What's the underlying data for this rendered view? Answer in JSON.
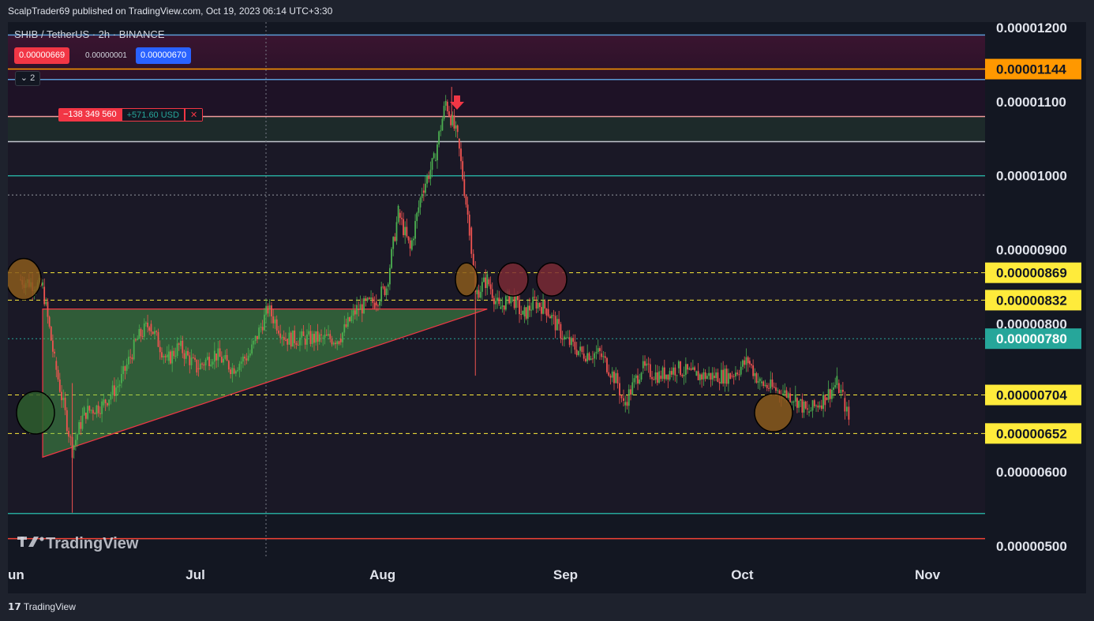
{
  "header": {
    "publish_text": "ScalpTrader69 published on TradingView.com, Oct 19, 2023 06:14 UTC+3:30"
  },
  "legend": {
    "symbol": "SHIB / TetherUS · 2h · BINANCE",
    "sell_price": "0.00000669",
    "spread": "0.00000001",
    "buy_price": "0.00000670",
    "indicator_count": "2"
  },
  "position_tool": {
    "qty": "−138 349 560",
    "pnl": "+571.60 USD",
    "close": "✕"
  },
  "watermark": "TradingView",
  "footer": {
    "brand": "TradingView"
  },
  "colors": {
    "background": "#131722",
    "up": "#4caf50",
    "down": "#ef5350",
    "triangle_fill": "#4caf50",
    "yellow_label": "#ffeb3b",
    "orange_label": "#ff9800",
    "teal_label": "#26a69a"
  },
  "chart_data": {
    "type": "candlestick",
    "title": "",
    "x_ticks": [
      "un",
      "Jul",
      "Aug",
      "Sep",
      "Oct",
      "Nov"
    ],
    "y_ticks": [
      {
        "value": 1.2e-05,
        "label": "0.00001200"
      },
      {
        "value": 1.1e-05,
        "label": "0.00001100"
      },
      {
        "value": 1e-05,
        "label": "0.00001000"
      },
      {
        "value": 9e-06,
        "label": "0.00000900"
      },
      {
        "value": 8e-06,
        "label": "0.00000800"
      },
      {
        "value": 6e-06,
        "label": "0.00000600"
      },
      {
        "value": 5e-06,
        "label": "0.00000500"
      }
    ],
    "ylim": [
      4.8e-06,
      1.225e-05
    ],
    "price_labels": [
      {
        "value": 1.144e-05,
        "label": "0.00001144",
        "style": "orange"
      },
      {
        "value": 8.69e-06,
        "label": "0.00000869",
        "style": "yellow"
      },
      {
        "value": 8.32e-06,
        "label": "0.00000832",
        "style": "yellow"
      },
      {
        "value": 7.8e-06,
        "label": "0.00000780",
        "style": "teal"
      },
      {
        "value": 7.04e-06,
        "label": "0.00000704",
        "style": "yellow"
      },
      {
        "value": 6.52e-06,
        "label": "0.00000652",
        "style": "yellow"
      }
    ],
    "horizontal_lines": [
      {
        "value": 1.19e-05,
        "color": "#5b9bd5"
      },
      {
        "value": 1.13e-05,
        "color": "#5b9bd5"
      },
      {
        "value": 1.144e-05,
        "color": "#ff9800"
      },
      {
        "value": 1.08e-05,
        "color": "#ef9a9a"
      },
      {
        "value": 1.046e-05,
        "color": "#c0c4cc"
      },
      {
        "value": 1e-05,
        "color": "#26a69a"
      },
      {
        "value": 9.74e-06,
        "color": "#9598a1",
        "dotted": true
      },
      {
        "value": 7.8e-06,
        "color": "#26a69a",
        "dotted": true
      },
      {
        "value": 5.44e-06,
        "color": "#26a69a"
      },
      {
        "value": 5.1e-06,
        "color": "#f44336"
      }
    ],
    "dashed_yellow_levels": [
      8.69e-06,
      8.32e-06,
      7.04e-06,
      6.52e-06
    ],
    "series": [
      {
        "date": "2023-06-01",
        "close": 8.6e-06
      },
      {
        "date": "2023-06-05",
        "close": 8.5e-06
      },
      {
        "date": "2023-06-07",
        "close": 7.5e-06
      },
      {
        "date": "2023-06-10",
        "close": 6.3e-06
      },
      {
        "date": "2023-06-12",
        "close": 6.8e-06
      },
      {
        "date": "2023-06-15",
        "close": 6.9e-06
      },
      {
        "date": "2023-06-18",
        "close": 7.2e-06
      },
      {
        "date": "2023-06-21",
        "close": 7.8e-06
      },
      {
        "date": "2023-06-23",
        "close": 8e-06
      },
      {
        "date": "2023-06-26",
        "close": 7.5e-06
      },
      {
        "date": "2023-06-28",
        "close": 7.7e-06
      },
      {
        "date": "2023-07-01",
        "close": 7.4e-06
      },
      {
        "date": "2023-07-04",
        "close": 7.6e-06
      },
      {
        "date": "2023-07-07",
        "close": 7.4e-06
      },
      {
        "date": "2023-07-10",
        "close": 7.6e-06
      },
      {
        "date": "2023-07-13",
        "close": 8.2e-06
      },
      {
        "date": "2023-07-16",
        "close": 7.8e-06
      },
      {
        "date": "2023-07-19",
        "close": 7.8e-06
      },
      {
        "date": "2023-07-22",
        "close": 7.8e-06
      },
      {
        "date": "2023-07-25",
        "close": 7.8e-06
      },
      {
        "date": "2023-07-28",
        "close": 8.2e-06
      },
      {
        "date": "2023-07-31",
        "close": 8.3e-06
      },
      {
        "date": "2023-08-02",
        "close": 8.5e-06
      },
      {
        "date": "2023-08-04",
        "close": 9.5e-06
      },
      {
        "date": "2023-08-06",
        "close": 9e-06
      },
      {
        "date": "2023-08-08",
        "close": 9.8e-06
      },
      {
        "date": "2023-08-10",
        "close": 1.02e-05
      },
      {
        "date": "2023-08-12",
        "close": 1.1e-05
      },
      {
        "date": "2023-08-14",
        "close": 1.05e-05
      },
      {
        "date": "2023-08-16",
        "close": 9.3e-06
      },
      {
        "date": "2023-08-17",
        "close": 8.4e-06
      },
      {
        "date": "2023-08-19",
        "close": 8.6e-06
      },
      {
        "date": "2023-08-21",
        "close": 8.2e-06
      },
      {
        "date": "2023-08-23",
        "close": 8.4e-06
      },
      {
        "date": "2023-08-25",
        "close": 8.1e-06
      },
      {
        "date": "2023-08-27",
        "close": 8.3e-06
      },
      {
        "date": "2023-08-29",
        "close": 8.2e-06
      },
      {
        "date": "2023-09-01",
        "close": 7.8e-06
      },
      {
        "date": "2023-09-04",
        "close": 7.6e-06
      },
      {
        "date": "2023-09-07",
        "close": 7.6e-06
      },
      {
        "date": "2023-09-10",
        "close": 7.2e-06
      },
      {
        "date": "2023-09-11",
        "close": 6.9e-06
      },
      {
        "date": "2023-09-14",
        "close": 7.4e-06
      },
      {
        "date": "2023-09-17",
        "close": 7.3e-06
      },
      {
        "date": "2023-09-20",
        "close": 7.4e-06
      },
      {
        "date": "2023-09-23",
        "close": 7.3e-06
      },
      {
        "date": "2023-09-26",
        "close": 7.3e-06
      },
      {
        "date": "2023-09-29",
        "close": 7.3e-06
      },
      {
        "date": "2023-10-02",
        "close": 7.5e-06
      },
      {
        "date": "2023-10-04",
        "close": 7.2e-06
      },
      {
        "date": "2023-10-07",
        "close": 7.1e-06
      },
      {
        "date": "2023-10-10",
        "close": 7e-06
      },
      {
        "date": "2023-10-12",
        "close": 6.8e-06
      },
      {
        "date": "2023-10-15",
        "close": 7e-06
      },
      {
        "date": "2023-10-17",
        "close": 7.2e-06
      },
      {
        "date": "2023-10-18",
        "close": 7e-06
      },
      {
        "date": "2023-10-19",
        "close": 6.7e-06
      }
    ],
    "grid": false,
    "legend": "top-left"
  }
}
